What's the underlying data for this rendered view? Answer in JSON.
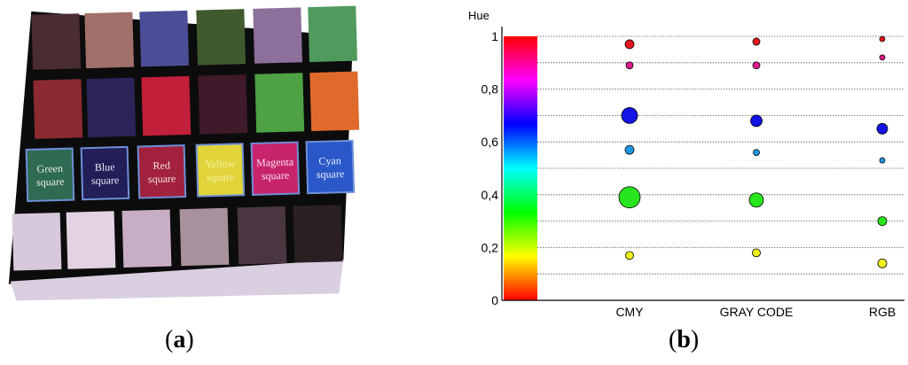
{
  "panel_a": {
    "caption": "a",
    "squares": [
      {
        "line1": "Green",
        "line2": "square",
        "fill": "#2f6a52",
        "text": "#e8f0e8",
        "border": "#6f8fd8"
      },
      {
        "line1": "Blue",
        "line2": "square",
        "fill": "#221e58",
        "text": "#e8e8f8",
        "border": "#6f8fd8"
      },
      {
        "line1": "Red",
        "line2": "square",
        "fill": "#a2213c",
        "text": "#f4e0e0",
        "border": "#6f8fd8"
      },
      {
        "line1": "Yellow",
        "line2": "square",
        "fill": "#e0d43a",
        "text": "#f8f0a0",
        "border": "#6f8fd8"
      },
      {
        "line1": "Magenta",
        "line2": "square",
        "fill": "#c8246c",
        "text": "#f8e0ec",
        "border": "#6f8fd8"
      },
      {
        "line1": "Cyan",
        "line2": "square",
        "fill": "#2a58c8",
        "text": "#e8f0ff",
        "border": "#6f8fd8"
      }
    ],
    "row1_colors": [
      "#4a2d30",
      "#a2706a",
      "#4b4e96",
      "#3f5a2e",
      "#8c6f9a",
      "#4f9a5c"
    ],
    "row2_colors": [
      "#8c2a32",
      "#2a2458",
      "#c21f3a",
      "#3e1a2a",
      "#4ea244",
      "#e06a2c"
    ],
    "row4_colors": [
      "#d8c8dc",
      "#e2d2e2",
      "#c8aec4",
      "#a8909c",
      "#4a3640",
      "#2a2024"
    ]
  },
  "chart_data": {
    "type": "scatter",
    "title": "",
    "ylabel": "Hue",
    "xlabel": "",
    "ylim": [
      0,
      1
    ],
    "yticks": [
      {
        "value": 0,
        "label": "0"
      },
      {
        "value": 0.2,
        "label": "0,2"
      },
      {
        "value": 0.4,
        "label": "0,4"
      },
      {
        "value": 0.6,
        "label": "0,6"
      },
      {
        "value": 0.8,
        "label": "0,8"
      },
      {
        "value": 1,
        "label": "1"
      }
    ],
    "gridlines": [
      0.1,
      0.2,
      0.3,
      0.4,
      0.5,
      0.6,
      0.7,
      0.8,
      0.9,
      1.0
    ],
    "hue_colorbar": true,
    "categories": [
      "CMY",
      "GRAY CODE",
      "RGB"
    ],
    "points": [
      {
        "category": "CMY",
        "hue": 0.97,
        "size": 5,
        "color": "#e8141e"
      },
      {
        "category": "CMY",
        "hue": 0.89,
        "size": 4,
        "color": "#e0198c"
      },
      {
        "category": "CMY",
        "hue": 0.7,
        "size": 9,
        "color": "#1414e6"
      },
      {
        "category": "CMY",
        "hue": 0.57,
        "size": 5,
        "color": "#1e96e6"
      },
      {
        "category": "CMY",
        "hue": 0.39,
        "size": 12,
        "color": "#28e61e"
      },
      {
        "category": "CMY",
        "hue": 0.17,
        "size": 4.5,
        "color": "#f0f01e"
      },
      {
        "category": "GRAY CODE",
        "hue": 0.98,
        "size": 4,
        "color": "#e8141e"
      },
      {
        "category": "GRAY CODE",
        "hue": 0.89,
        "size": 4,
        "color": "#e0198c"
      },
      {
        "category": "GRAY CODE",
        "hue": 0.68,
        "size": 6.5,
        "color": "#1414e6"
      },
      {
        "category": "GRAY CODE",
        "hue": 0.56,
        "size": 3.5,
        "color": "#1e96e6"
      },
      {
        "category": "GRAY CODE",
        "hue": 0.38,
        "size": 8,
        "color": "#28e61e"
      },
      {
        "category": "GRAY CODE",
        "hue": 0.18,
        "size": 4.5,
        "color": "#f0f01e"
      },
      {
        "category": "RGB",
        "hue": 0.99,
        "size": 3,
        "color": "#e8141e"
      },
      {
        "category": "RGB",
        "hue": 0.92,
        "size": 3,
        "color": "#e0198c"
      },
      {
        "category": "RGB",
        "hue": 0.65,
        "size": 6,
        "color": "#1414e6"
      },
      {
        "category": "RGB",
        "hue": 0.53,
        "size": 3,
        "color": "#1e96e6"
      },
      {
        "category": "RGB",
        "hue": 0.3,
        "size": 5,
        "color": "#28e61e"
      },
      {
        "category": "RGB",
        "hue": 0.14,
        "size": 5,
        "color": "#f0f01e"
      }
    ],
    "caption": "b"
  }
}
